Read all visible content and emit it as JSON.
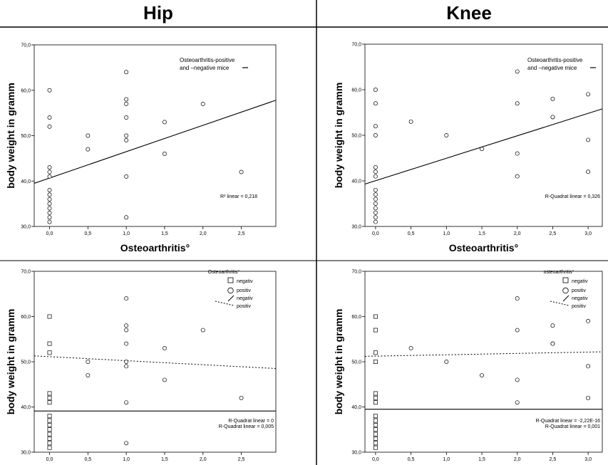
{
  "headers": {
    "hip": "Hip",
    "knee": "Knee"
  },
  "chart_data": [
    {
      "id": "hip-top",
      "type": "scatter",
      "xlabel": "Osteoarthritis°",
      "ylabel": "body weight in gramm",
      "xlim": [
        -0.2,
        2.95
      ],
      "ylim": [
        30,
        70
      ],
      "xticks": [
        0,
        0.5,
        1,
        1.5,
        2,
        2.5
      ],
      "xticklabels": [
        "0,0",
        "0,5",
        "1,0",
        "1,5",
        "2,0",
        "2,5"
      ],
      "yticks": [
        30,
        40,
        50,
        60,
        70
      ],
      "yticklabels": [
        "30,0",
        "40,0",
        "50,0",
        "60,0",
        "70,0"
      ],
      "points": [
        {
          "x": 0,
          "y": 60,
          "g": "pos"
        },
        {
          "x": 0,
          "y": 54,
          "g": "pos"
        },
        {
          "x": 0,
          "y": 52,
          "g": "pos"
        },
        {
          "x": 0,
          "y": 43,
          "g": "pos"
        },
        {
          "x": 0,
          "y": 42,
          "g": "pos"
        },
        {
          "x": 0,
          "y": 41,
          "g": "pos"
        },
        {
          "x": 0,
          "y": 38,
          "g": "pos"
        },
        {
          "x": 0,
          "y": 37,
          "g": "pos"
        },
        {
          "x": 0,
          "y": 36,
          "g": "pos"
        },
        {
          "x": 0,
          "y": 35,
          "g": "pos"
        },
        {
          "x": 0,
          "y": 34,
          "g": "pos"
        },
        {
          "x": 0,
          "y": 33,
          "g": "pos"
        },
        {
          "x": 0,
          "y": 32,
          "g": "pos"
        },
        {
          "x": 0,
          "y": 31,
          "g": "pos"
        },
        {
          "x": 0.5,
          "y": 50,
          "g": "pos"
        },
        {
          "x": 0.5,
          "y": 47,
          "g": "pos"
        },
        {
          "x": 1,
          "y": 64,
          "g": "pos"
        },
        {
          "x": 1,
          "y": 58,
          "g": "pos"
        },
        {
          "x": 1,
          "y": 57,
          "g": "pos"
        },
        {
          "x": 1,
          "y": 54,
          "g": "pos"
        },
        {
          "x": 1,
          "y": 50,
          "g": "pos"
        },
        {
          "x": 1,
          "y": 49,
          "g": "pos"
        },
        {
          "x": 1,
          "y": 41,
          "g": "pos"
        },
        {
          "x": 1,
          "y": 32,
          "g": "pos"
        },
        {
          "x": 1.5,
          "y": 53,
          "g": "pos"
        },
        {
          "x": 1.5,
          "y": 46,
          "g": "pos"
        },
        {
          "x": 2,
          "y": 57,
          "g": "pos"
        },
        {
          "x": 2.5,
          "y": 42,
          "g": "pos"
        }
      ],
      "lines": [
        {
          "style": "solid",
          "y_at_xmin": 39.5,
          "y_at_xmax": 57.8
        }
      ],
      "legend": {
        "type": "text",
        "lines": [
          "Osteoarthritis-positive",
          "and –negative mice"
        ]
      },
      "annotations": [
        "R² linear = 0,218"
      ]
    },
    {
      "id": "knee-top",
      "type": "scatter",
      "xlabel": "Osteoarthritis°",
      "ylabel": "body weight in gramm",
      "xlim": [
        -0.15,
        3.2
      ],
      "ylim": [
        30,
        70
      ],
      "xticks": [
        0,
        0.5,
        1,
        1.5,
        2,
        2.5,
        3
      ],
      "xticklabels": [
        "0,0",
        "0,5",
        "1,0",
        "1,5",
        "2,0",
        "2,5",
        "3,0"
      ],
      "yticks": [
        30,
        40,
        50,
        60,
        70
      ],
      "yticklabels": [
        "30,0",
        "40,0",
        "50,0",
        "60,0",
        "70,0"
      ],
      "points": [
        {
          "x": 0,
          "y": 60,
          "g": "pos"
        },
        {
          "x": 0,
          "y": 57,
          "g": "pos"
        },
        {
          "x": 0,
          "y": 52,
          "g": "pos"
        },
        {
          "x": 0,
          "y": 50,
          "g": "pos"
        },
        {
          "x": 0,
          "y": 43,
          "g": "pos"
        },
        {
          "x": 0,
          "y": 42,
          "g": "pos"
        },
        {
          "x": 0,
          "y": 41,
          "g": "pos"
        },
        {
          "x": 0,
          "y": 38,
          "g": "pos"
        },
        {
          "x": 0,
          "y": 37,
          "g": "pos"
        },
        {
          "x": 0,
          "y": 36,
          "g": "pos"
        },
        {
          "x": 0,
          "y": 35,
          "g": "pos"
        },
        {
          "x": 0,
          "y": 34,
          "g": "pos"
        },
        {
          "x": 0,
          "y": 33,
          "g": "pos"
        },
        {
          "x": 0,
          "y": 32,
          "g": "pos"
        },
        {
          "x": 0,
          "y": 31,
          "g": "pos"
        },
        {
          "x": 0.5,
          "y": 53,
          "g": "pos"
        },
        {
          "x": 1,
          "y": 50,
          "g": "pos"
        },
        {
          "x": 1.5,
          "y": 47,
          "g": "pos"
        },
        {
          "x": 2,
          "y": 64,
          "g": "pos"
        },
        {
          "x": 2,
          "y": 57,
          "g": "pos"
        },
        {
          "x": 2,
          "y": 46,
          "g": "pos"
        },
        {
          "x": 2,
          "y": 41,
          "g": "pos"
        },
        {
          "x": 2.5,
          "y": 58,
          "g": "pos"
        },
        {
          "x": 2.5,
          "y": 54,
          "g": "pos"
        },
        {
          "x": 2.5,
          "y": 54,
          "g": "pos"
        },
        {
          "x": 3,
          "y": 59,
          "g": "pos"
        },
        {
          "x": 3,
          "y": 49,
          "g": "pos"
        },
        {
          "x": 3,
          "y": 42,
          "g": "pos"
        }
      ],
      "lines": [
        {
          "style": "solid",
          "y_at_xmin": 39.3,
          "y_at_xmax": 55.8
        }
      ],
      "legend": {
        "type": "text",
        "lines": [
          "Osteoarthritis-positive",
          "and –negative mice"
        ]
      },
      "annotations": [
        "R-Quadrat linear = 0,326"
      ]
    },
    {
      "id": "hip-bottom",
      "type": "scatter",
      "ylabel": "body weight in gramm",
      "xlim": [
        -0.2,
        2.95
      ],
      "ylim": [
        30,
        70
      ],
      "xticks": [
        0,
        0.5,
        1,
        1.5,
        2,
        2.5
      ],
      "xticklabels": [
        "0,0",
        "0,5",
        "1,0",
        "1,5",
        "2,0",
        "2,5"
      ],
      "yticks": [
        30,
        40,
        50,
        60,
        70
      ],
      "yticklabels": [
        "30,0",
        "40,0",
        "50,0",
        "60,0",
        "70,0"
      ],
      "points": [
        {
          "x": 0,
          "y": 60,
          "g": "neg"
        },
        {
          "x": 0,
          "y": 54,
          "g": "neg"
        },
        {
          "x": 0,
          "y": 52,
          "g": "neg"
        },
        {
          "x": 0,
          "y": 43,
          "g": "neg"
        },
        {
          "x": 0,
          "y": 42,
          "g": "neg"
        },
        {
          "x": 0,
          "y": 41,
          "g": "neg"
        },
        {
          "x": 0,
          "y": 38,
          "g": "neg"
        },
        {
          "x": 0,
          "y": 37,
          "g": "neg"
        },
        {
          "x": 0,
          "y": 36,
          "g": "neg"
        },
        {
          "x": 0,
          "y": 35,
          "g": "neg"
        },
        {
          "x": 0,
          "y": 34,
          "g": "neg"
        },
        {
          "x": 0,
          "y": 33,
          "g": "neg"
        },
        {
          "x": 0,
          "y": 32,
          "g": "neg"
        },
        {
          "x": 0,
          "y": 31,
          "g": "neg"
        },
        {
          "x": 0.5,
          "y": 50,
          "g": "pos"
        },
        {
          "x": 0.5,
          "y": 47,
          "g": "pos"
        },
        {
          "x": 1,
          "y": 64,
          "g": "pos"
        },
        {
          "x": 1,
          "y": 58,
          "g": "pos"
        },
        {
          "x": 1,
          "y": 57,
          "g": "pos"
        },
        {
          "x": 1,
          "y": 54,
          "g": "pos"
        },
        {
          "x": 1,
          "y": 50,
          "g": "pos"
        },
        {
          "x": 1,
          "y": 49,
          "g": "pos"
        },
        {
          "x": 1,
          "y": 41,
          "g": "pos"
        },
        {
          "x": 1,
          "y": 32,
          "g": "pos"
        },
        {
          "x": 1.5,
          "y": 53,
          "g": "pos"
        },
        {
          "x": 1.5,
          "y": 46,
          "g": "pos"
        },
        {
          "x": 2,
          "y": 57,
          "g": "pos"
        },
        {
          "x": 2.5,
          "y": 42,
          "g": "pos"
        }
      ],
      "lines": [
        {
          "style": "solid",
          "y_at_xmin": 39.1,
          "y_at_xmax": 39.1
        },
        {
          "style": "dotted",
          "y_at_xmin": 51.3,
          "y_at_xmax": 48.5
        }
      ],
      "legend": {
        "type": "markers",
        "title": "Osteoarthritis°",
        "entries": [
          "negativ",
          "positiv",
          "negativ",
          "positiv"
        ]
      },
      "annotations": [
        "R-Quadrat linear = 0",
        "R-Quadrat linear = 0,005"
      ]
    },
    {
      "id": "knee-bottom",
      "type": "scatter",
      "ylabel": "body weight in gramm",
      "xlim": [
        -0.15,
        3.2
      ],
      "ylim": [
        30,
        70
      ],
      "xticks": [
        0,
        0.5,
        1,
        1.5,
        2,
        2.5,
        3
      ],
      "xticklabels": [
        "0,0",
        "0,5",
        "1,0",
        "1,5",
        "2,0",
        "2,5",
        "3,0"
      ],
      "yticks": [
        30,
        40,
        50,
        60,
        70
      ],
      "yticklabels": [
        "30,0",
        "40,0",
        "50,0",
        "60,0",
        "70,0"
      ],
      "points": [
        {
          "x": 0,
          "y": 60,
          "g": "neg"
        },
        {
          "x": 0,
          "y": 57,
          "g": "neg"
        },
        {
          "x": 0,
          "y": 52,
          "g": "neg"
        },
        {
          "x": 0,
          "y": 50,
          "g": "neg"
        },
        {
          "x": 0,
          "y": 43,
          "g": "neg"
        },
        {
          "x": 0,
          "y": 42,
          "g": "neg"
        },
        {
          "x": 0,
          "y": 41,
          "g": "neg"
        },
        {
          "x": 0,
          "y": 38,
          "g": "neg"
        },
        {
          "x": 0,
          "y": 37,
          "g": "neg"
        },
        {
          "x": 0,
          "y": 36,
          "g": "neg"
        },
        {
          "x": 0,
          "y": 35,
          "g": "neg"
        },
        {
          "x": 0,
          "y": 34,
          "g": "neg"
        },
        {
          "x": 0,
          "y": 33,
          "g": "neg"
        },
        {
          "x": 0,
          "y": 32,
          "g": "neg"
        },
        {
          "x": 0,
          "y": 31,
          "g": "neg"
        },
        {
          "x": 0.5,
          "y": 53,
          "g": "pos"
        },
        {
          "x": 1,
          "y": 50,
          "g": "pos"
        },
        {
          "x": 1.5,
          "y": 47,
          "g": "pos"
        },
        {
          "x": 2,
          "y": 64,
          "g": "pos"
        },
        {
          "x": 2,
          "y": 57,
          "g": "pos"
        },
        {
          "x": 2,
          "y": 46,
          "g": "pos"
        },
        {
          "x": 2,
          "y": 41,
          "g": "pos"
        },
        {
          "x": 2.5,
          "y": 58,
          "g": "pos"
        },
        {
          "x": 2.5,
          "y": 54,
          "g": "pos"
        },
        {
          "x": 2.5,
          "y": 54,
          "g": "pos"
        },
        {
          "x": 3,
          "y": 59,
          "g": "pos"
        },
        {
          "x": 3,
          "y": 49,
          "g": "pos"
        },
        {
          "x": 3,
          "y": 42,
          "g": "pos"
        }
      ],
      "lines": [
        {
          "style": "solid",
          "y_at_xmin": 39.5,
          "y_at_xmax": 39.5
        },
        {
          "style": "dotted",
          "y_at_xmin": 51.2,
          "y_at_xmax": 52.2
        }
      ],
      "legend": {
        "type": "markers",
        "title": "osteoarthritis°",
        "entries": [
          "negativ",
          "positiv",
          "negativ",
          "positiv"
        ]
      },
      "annotations": [
        "R-Quadrat linear = -2,22E-16",
        "R-Quadrat linear = 0,001"
      ]
    }
  ]
}
